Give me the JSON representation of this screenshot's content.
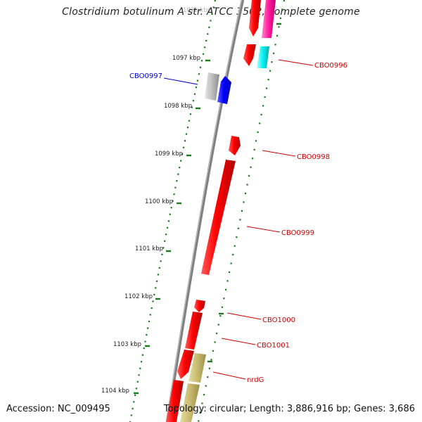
{
  "title": "Clostridium botulinum A str. ATCC 3502, complete genome",
  "accession_text": "Accession: NC_009495",
  "summary_text": "Topology: circular; Length: 3,886,916 bp; Genes: 3,686",
  "colors": {
    "backbone": "#808080",
    "ticks": "#1a7a1a",
    "forward_label": "#0000cc",
    "reverse_label": "#cc0000"
  },
  "ticks": [
    {
      "label": "1096 kbp"
    },
    {
      "label": "1097 kbp"
    },
    {
      "label": "1098 kbp"
    },
    {
      "label": "1099 kbp"
    },
    {
      "label": "1100 kbp"
    },
    {
      "label": "1101 kbp"
    },
    {
      "label": "1102 kbp"
    },
    {
      "label": "1103 kbp"
    },
    {
      "label": "1104 kbp"
    }
  ],
  "labels": [
    {
      "text": "CBO0996",
      "color": "#cc0000"
    },
    {
      "text": "CBO0997",
      "color": "#0000cc"
    },
    {
      "text": "CBO0998",
      "color": "#cc0000"
    },
    {
      "text": "CBO0999",
      "color": "#cc0000"
    },
    {
      "text": "CBO1000",
      "color": "#cc0000"
    },
    {
      "text": "CBO1001",
      "color": "#cc0000"
    },
    {
      "text": "nrdG",
      "color": "#cc0000"
    }
  ]
}
